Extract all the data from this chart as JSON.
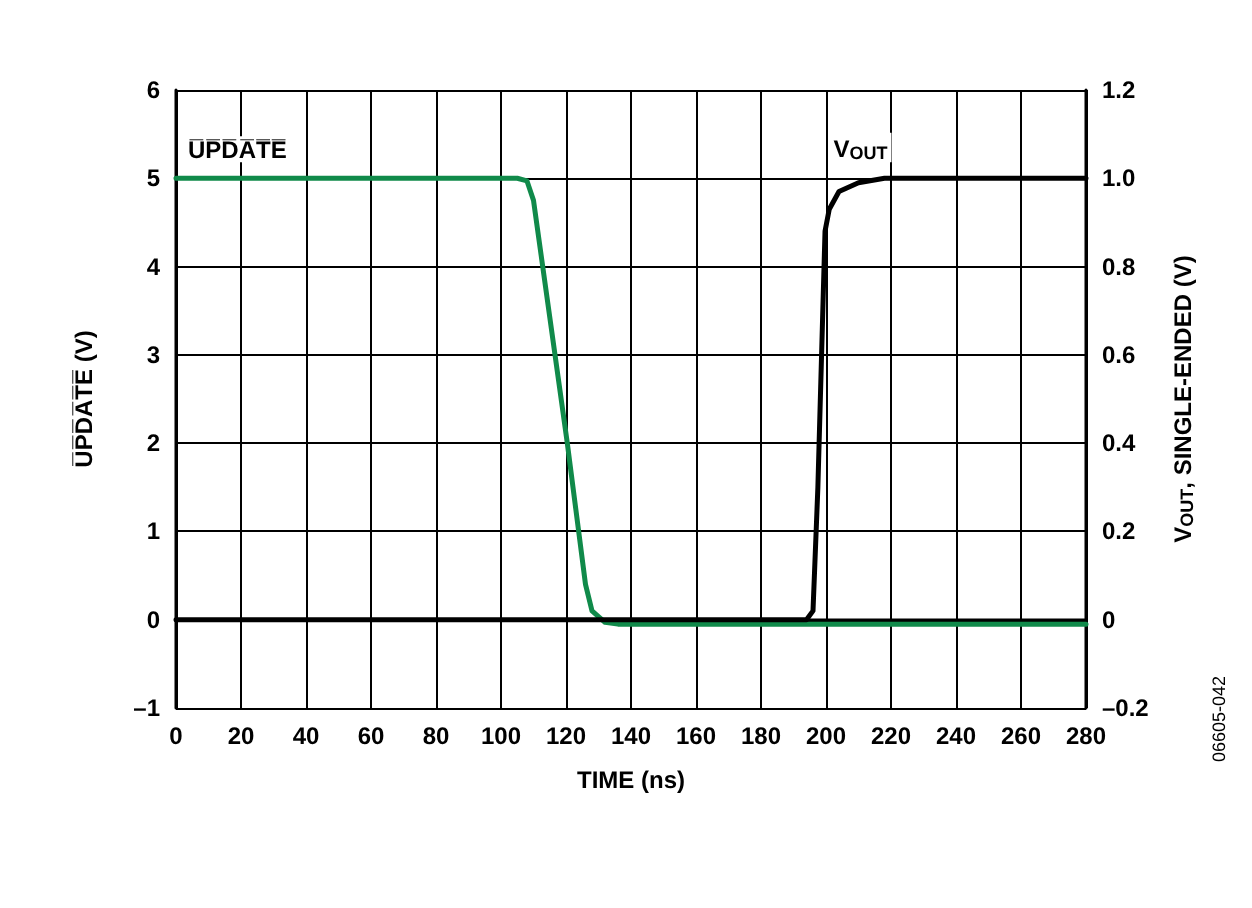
{
  "chart_data": {
    "type": "line",
    "xlabel": "TIME (ns)",
    "ylabel": "U̅P̅D̅A̅T̅E̅ (V)",
    "y2label": "V$_{OUT}$, SINGLE-ENDED (V)",
    "xlim": [
      0,
      280
    ],
    "xticks": [
      0,
      20,
      40,
      60,
      80,
      100,
      120,
      140,
      160,
      180,
      200,
      220,
      240,
      260,
      280
    ],
    "ylim": [
      -1,
      6
    ],
    "yticks": [
      {
        "value": -1,
        "label": "–1"
      },
      0,
      1,
      2,
      3,
      4,
      5,
      6
    ],
    "y2lim": [
      -0.2,
      1.2
    ],
    "y2ticks": [
      {
        "value": -0.2,
        "label": "–0.2"
      },
      0,
      0.2,
      0.4,
      0.6,
      0.8,
      {
        "value": 1,
        "label": "1.0"
      },
      1.2
    ],
    "grid": true,
    "marker": "none",
    "line_style": "solid",
    "series": [
      {
        "name": "U̅P̅D̅A̅T̅E̅",
        "color": "#108a4a",
        "x": [
          0,
          105,
          108,
          110,
          120.4,
          126,
          128,
          132,
          136,
          280
        ],
        "values": [
          5,
          5,
          4.97,
          4.75,
          2,
          0.4,
          0.1,
          -0.03,
          -0.05,
          -0.05
        ]
      },
      {
        "name": "V$_{OUT}$",
        "color": "#000000",
        "axis": "y2",
        "x": [
          0,
          194,
          196,
          197.5,
          199.7,
          201,
          204,
          210,
          218,
          280
        ],
        "values": [
          0,
          0,
          0.02,
          0.3,
          0.88,
          0.93,
          0.97,
          0.99,
          1,
          1
        ]
      }
    ],
    "annotations": [
      "06605-042"
    ]
  }
}
